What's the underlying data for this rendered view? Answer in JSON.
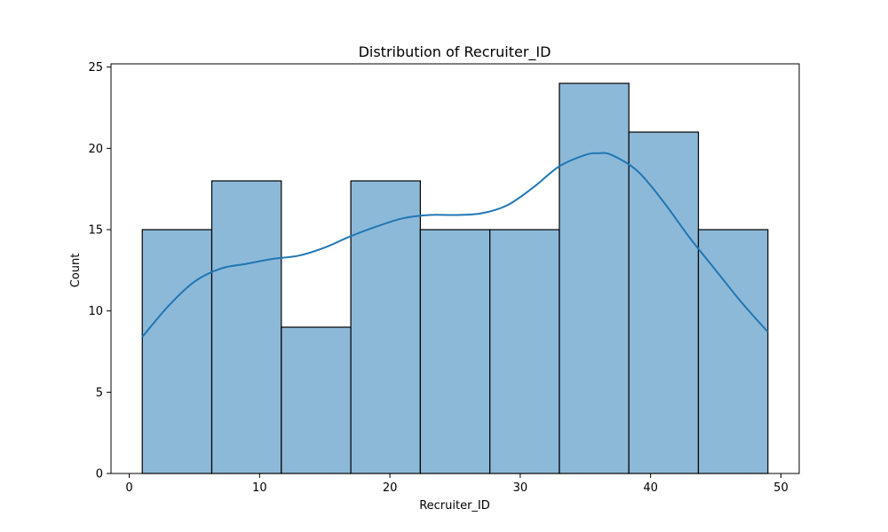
{
  "chart_data": {
    "type": "bar",
    "title": "Distribution of Recruiter_ID",
    "xlabel": "Recruiter_ID",
    "ylabel": "Count",
    "bins": [
      {
        "start": 1.0,
        "end": 6.333,
        "count": 15
      },
      {
        "start": 6.333,
        "end": 11.667,
        "count": 18
      },
      {
        "start": 11.667,
        "end": 17.0,
        "count": 9
      },
      {
        "start": 17.0,
        "end": 22.333,
        "count": 18
      },
      {
        "start": 22.333,
        "end": 27.667,
        "count": 15
      },
      {
        "start": 27.667,
        "end": 33.0,
        "count": 15
      },
      {
        "start": 33.0,
        "end": 38.333,
        "count": 24
      },
      {
        "start": 38.333,
        "end": 43.667,
        "count": 21
      },
      {
        "start": 43.667,
        "end": 49.0,
        "count": 15
      }
    ],
    "kde": {
      "x": [
        1,
        3,
        5,
        7,
        9,
        11,
        13,
        15,
        17,
        19,
        21,
        23,
        25,
        27,
        29,
        31,
        33,
        35,
        36,
        37,
        39,
        41,
        43,
        45,
        47,
        49
      ],
      "y": [
        8.4,
        10.3,
        11.8,
        12.6,
        12.9,
        13.2,
        13.4,
        13.9,
        14.6,
        15.2,
        15.7,
        15.9,
        15.9,
        16.0,
        16.5,
        17.6,
        18.9,
        19.6,
        19.7,
        19.6,
        18.6,
        16.7,
        14.5,
        12.5,
        10.5,
        8.7
      ]
    },
    "xlim": [
      -1.4,
      51.4
    ],
    "ylim": [
      0,
      25.2
    ],
    "xticks": [
      0,
      10,
      20,
      30,
      40,
      50
    ],
    "yticks": [
      0,
      5,
      10,
      15,
      20,
      25
    ],
    "grid": false,
    "colors": {
      "bar_fill": "#8db9d9",
      "bar_edge": "#000000",
      "kde_line": "#1f77b4"
    }
  }
}
